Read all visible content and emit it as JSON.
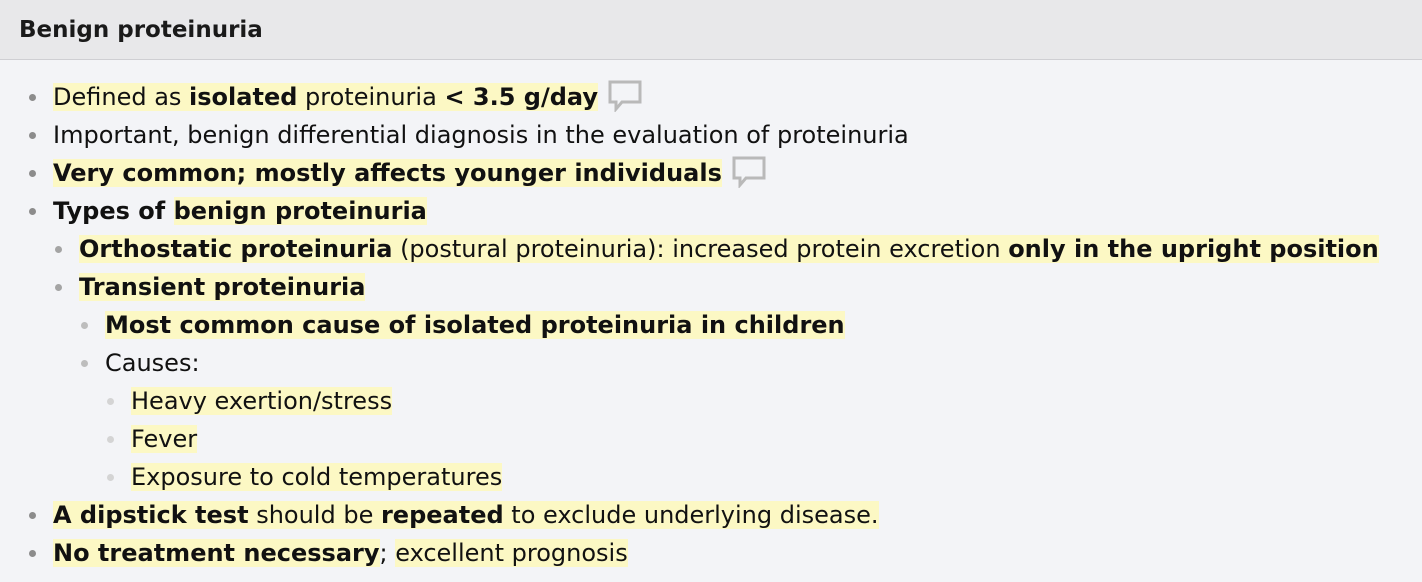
{
  "header": {
    "title": "Benign proteinuria"
  },
  "items": {
    "i1": {
      "a": "Defined as ",
      "b": "isolated",
      "c": " proteinuria ",
      "d": "< 3.5 g/day"
    },
    "i2": {
      "a": "Important, benign differential diagnosis in the evaluation of proteinuria"
    },
    "i3": {
      "a": "Very common; mostly affects younger individuals"
    },
    "i4": {
      "a": "Types of ",
      "b": "benign proteinuria"
    },
    "i5": {
      "a": "Orthostatic proteinuria",
      "b": " (postural proteinuria): increased protein excretion ",
      "c": "only in the upright position"
    },
    "i6": {
      "a": "Transient proteinuria"
    },
    "i7": {
      "a": "Most common cause of isolated proteinuria in children"
    },
    "i8": {
      "a": "Causes:"
    },
    "i9": {
      "a": "Heavy exertion/stress"
    },
    "i10": {
      "a": "Fever"
    },
    "i11": {
      "a": "Exposure to cold temperatures"
    },
    "i12": {
      "a": "A dipstick test",
      "b": " should be ",
      "c": "repeated",
      "d": " to exclude underlying disease."
    },
    "i13": {
      "a": "No treatment necessary",
      "b": "; ",
      "c": "excellent prognosis"
    }
  },
  "icons": {
    "comment": "speech-bubble-icon"
  }
}
